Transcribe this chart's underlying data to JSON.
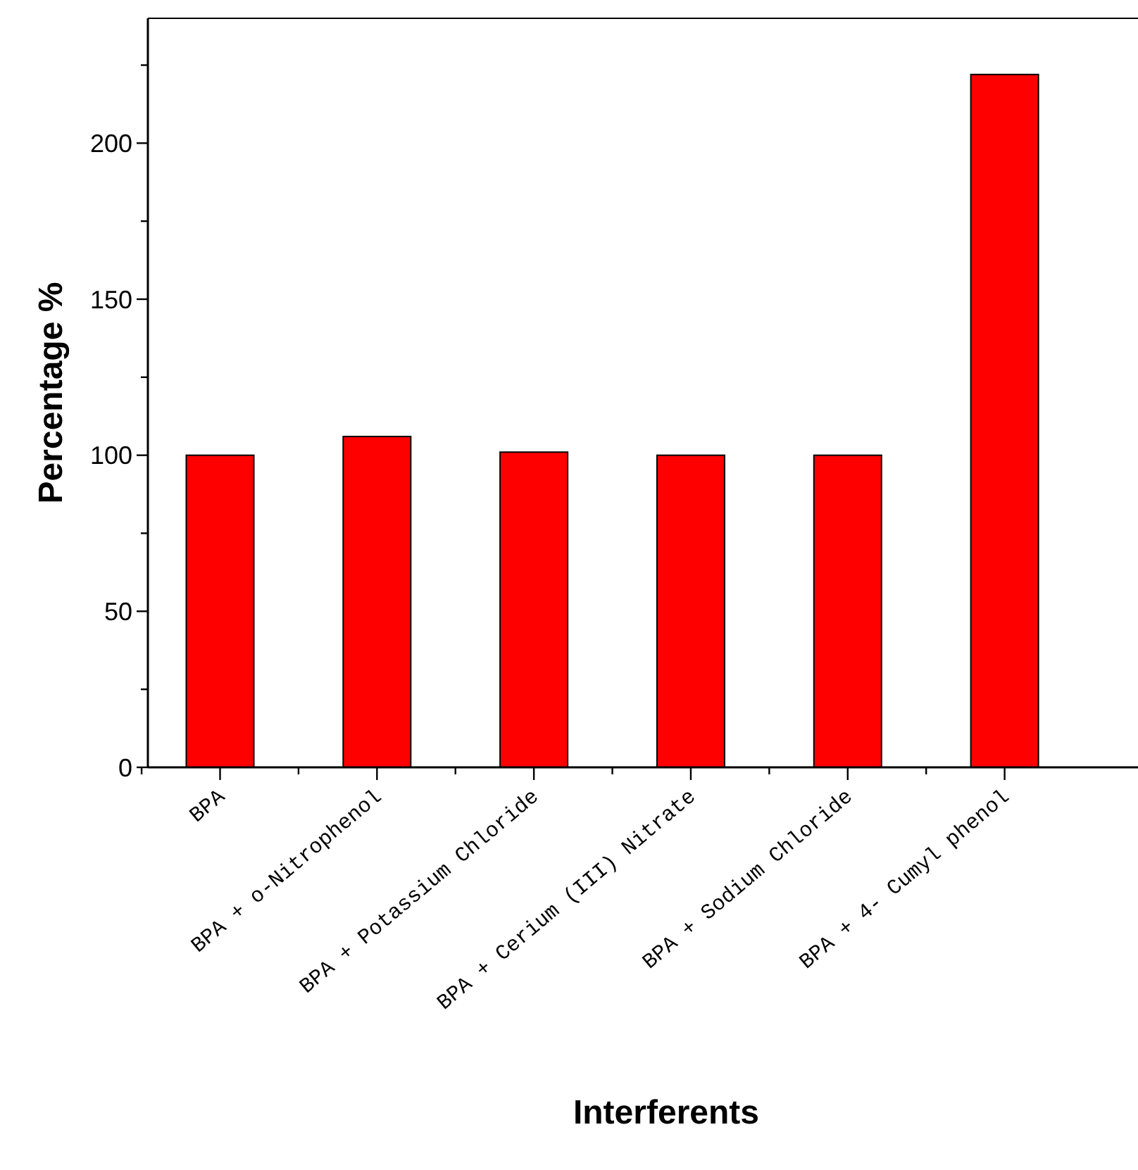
{
  "chart_data": {
    "type": "bar",
    "xlabel": "Interferents",
    "ylabel": "Percentage %",
    "categories": [
      "BPA",
      "BPA + o-Nitrophenol",
      "BPA + Potassium Chloride",
      "BPA + Cerium (III) Nitrate",
      "BPA + Sodium Chloride",
      "BPA + 4- Cumyl phenol"
    ],
    "values": [
      100,
      106,
      101,
      100,
      100,
      222
    ],
    "color": "#ff0000",
    "ylim": [
      0,
      240
    ],
    "yticks": [
      0,
      {
        "value": 25,
        "label": null
      },
      50,
      {
        "value": 75,
        "label": null
      },
      100,
      {
        "value": 125,
        "label": null
      },
      150,
      {
        "value": 175,
        "label": null
      },
      200,
      {
        "value": 225,
        "label": null
      }
    ]
  }
}
